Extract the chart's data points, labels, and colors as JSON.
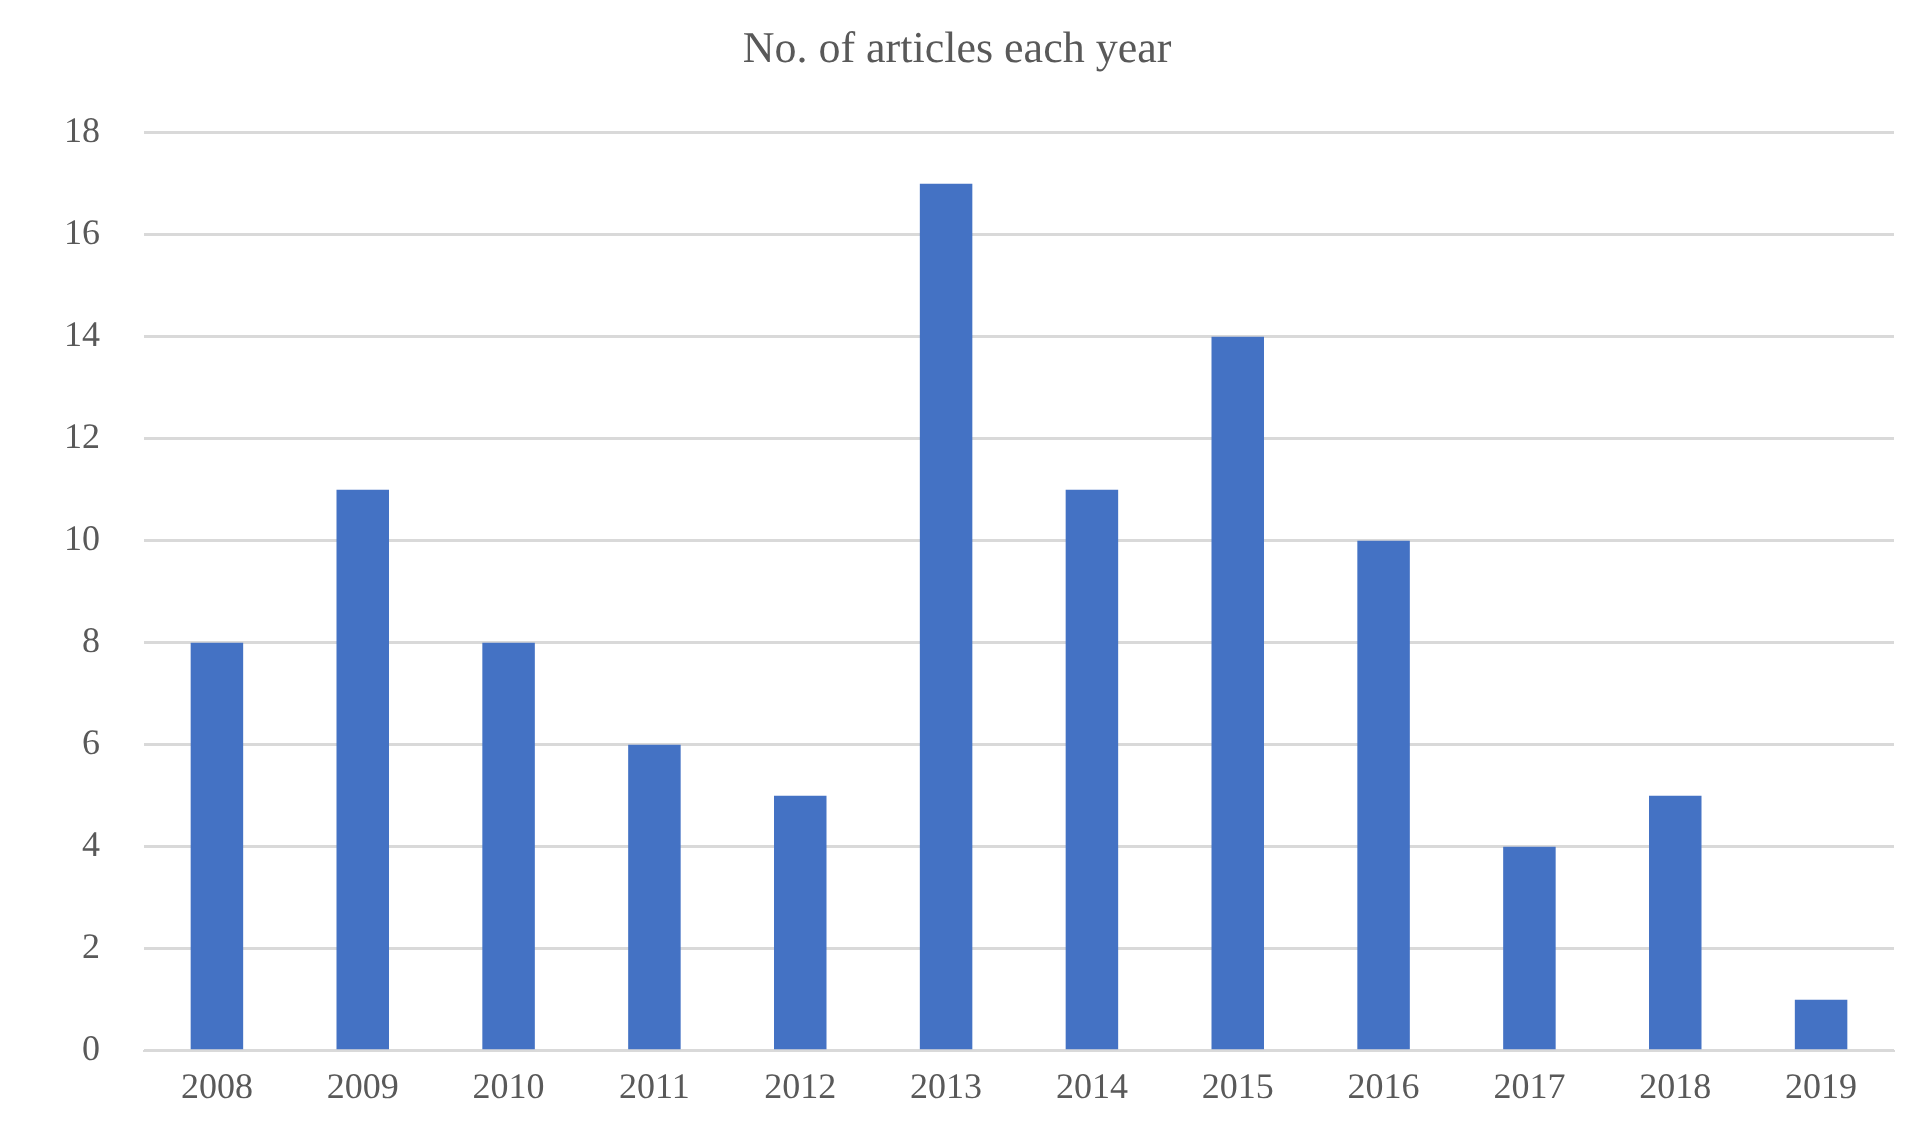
{
  "chart_data": {
    "type": "bar",
    "title": "No. of articles each year",
    "categories": [
      "2008",
      "2009",
      "2010",
      "2011",
      "2012",
      "2013",
      "2014",
      "2015",
      "2016",
      "2017",
      "2018",
      "2019"
    ],
    "values": [
      8,
      11,
      8,
      6,
      5,
      17,
      11,
      14,
      10,
      4,
      5,
      1
    ],
    "color": "#4472c4",
    "ylim": [
      0,
      18
    ],
    "yticks": [
      0,
      2,
      4,
      6,
      8,
      10,
      12,
      14,
      16,
      18
    ],
    "grid": "y"
  }
}
